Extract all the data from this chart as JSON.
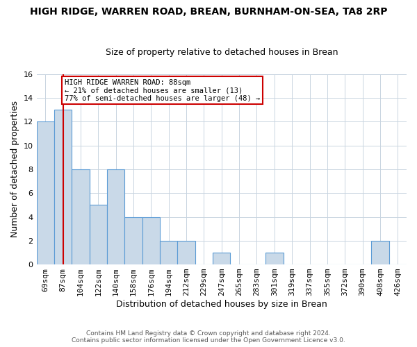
{
  "title": "HIGH RIDGE, WARREN ROAD, BREAN, BURNHAM-ON-SEA, TA8 2RP",
  "subtitle": "Size of property relative to detached houses in Brean",
  "xlabel": "Distribution of detached houses by size in Brean",
  "ylabel": "Number of detached properties",
  "categories": [
    "69sqm",
    "87sqm",
    "104sqm",
    "122sqm",
    "140sqm",
    "158sqm",
    "176sqm",
    "194sqm",
    "212sqm",
    "229sqm",
    "247sqm",
    "265sqm",
    "283sqm",
    "301sqm",
    "319sqm",
    "337sqm",
    "355sqm",
    "372sqm",
    "390sqm",
    "408sqm",
    "426sqm"
  ],
  "values": [
    12,
    13,
    8,
    5,
    8,
    4,
    4,
    2,
    2,
    0,
    1,
    0,
    0,
    1,
    0,
    0,
    0,
    0,
    0,
    2,
    0
  ],
  "bar_color": "#c9d9e8",
  "bar_edge_color": "#5b9bd5",
  "ylim": [
    0,
    16
  ],
  "yticks": [
    0,
    2,
    4,
    6,
    8,
    10,
    12,
    14,
    16
  ],
  "property_line_x": 1,
  "property_line_color": "#cc0000",
  "annotation_line1": "HIGH RIDGE WARREN ROAD: 88sqm",
  "annotation_line2": "← 21% of detached houses are smaller (13)",
  "annotation_line3": "77% of semi-detached houses are larger (48) →",
  "annotation_box_color": "#cc0000",
  "footer_line1": "Contains HM Land Registry data © Crown copyright and database right 2024.",
  "footer_line2": "Contains public sector information licensed under the Open Government Licence v3.0.",
  "bg_color": "#ffffff",
  "grid_color": "#c8d4e0",
  "title_fontsize": 10,
  "subtitle_fontsize": 9,
  "ylabel_fontsize": 9,
  "xlabel_fontsize": 9,
  "tick_fontsize": 8,
  "annot_fontsize": 7.5,
  "footer_fontsize": 6.5
}
